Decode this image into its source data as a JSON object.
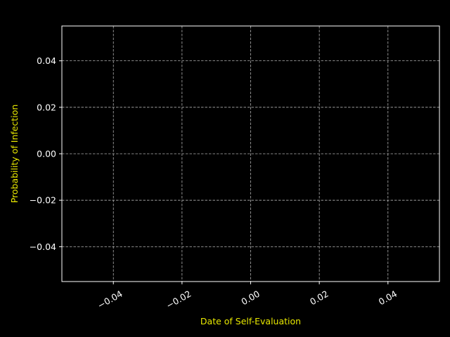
{
  "chart_data": {
    "type": "line",
    "title": "",
    "xlabel": "Date of Self-Evaluation",
    "ylabel": "Probability of Infection",
    "series": [],
    "xlim": [
      -0.055,
      0.055
    ],
    "ylim": [
      -0.055,
      0.055
    ],
    "x_ticks": [
      -0.04,
      -0.02,
      0.0,
      0.02,
      0.04
    ],
    "y_ticks": [
      -0.04,
      -0.02,
      0.0,
      0.02,
      0.04
    ],
    "x_tick_labels": [
      "−0.04",
      "−0.02",
      "0.00",
      "0.02",
      "0.04"
    ],
    "y_tick_labels": [
      "−0.04",
      "−0.02",
      "0.00",
      "0.02",
      "0.04"
    ],
    "grid": true,
    "colors": {
      "background": "#000000",
      "axes": "#ffffff",
      "grid": "#b0b0b0",
      "tick_text": "#ffffff",
      "label_text": "#e8e800"
    }
  }
}
